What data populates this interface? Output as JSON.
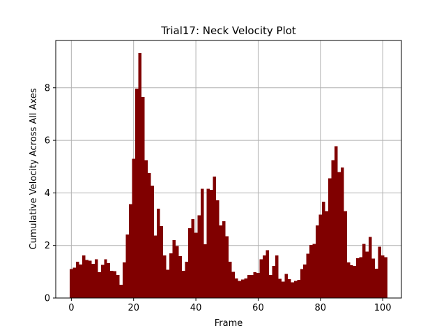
{
  "chart_data": {
    "type": "bar",
    "title": "Trial17: Neck Velocity Plot",
    "xlabel": "Frame",
    "ylabel": "Cumulative Velocity Across All Axes",
    "xlim": [
      -5,
      106
    ],
    "ylim": [
      0,
      9.8
    ],
    "xticks": [
      0,
      20,
      40,
      60,
      80,
      100
    ],
    "yticks": [
      0,
      2,
      4,
      6,
      8
    ],
    "grid": true,
    "bar_color": "#800000",
    "bar_width": 1,
    "x": [
      0,
      1,
      2,
      3,
      4,
      5,
      6,
      7,
      8,
      9,
      10,
      11,
      12,
      13,
      14,
      15,
      16,
      17,
      18,
      19,
      20,
      21,
      22,
      23,
      24,
      25,
      26,
      27,
      28,
      29,
      30,
      31,
      32,
      33,
      34,
      35,
      36,
      37,
      38,
      39,
      40,
      41,
      42,
      43,
      44,
      45,
      46,
      47,
      48,
      49,
      50,
      51,
      52,
      53,
      54,
      55,
      56,
      57,
      58,
      59,
      60,
      61,
      62,
      63,
      64,
      65,
      66,
      67,
      68,
      69,
      70,
      71,
      72,
      73,
      74,
      75,
      76,
      77,
      78,
      79,
      80,
      81,
      82,
      83,
      84,
      85,
      86,
      87,
      88,
      89,
      90,
      91,
      92,
      93,
      94,
      95,
      96,
      97,
      98,
      99,
      100,
      101
    ],
    "values": [
      1.1,
      1.15,
      1.38,
      1.28,
      1.62,
      1.45,
      1.42,
      1.3,
      1.47,
      0.98,
      1.26,
      1.47,
      1.33,
      1.04,
      1.02,
      0.88,
      0.5,
      1.35,
      2.42,
      3.57,
      5.3,
      7.97,
      9.32,
      7.65,
      5.25,
      4.75,
      4.28,
      2.38,
      3.4,
      2.74,
      1.62,
      1.07,
      1.7,
      2.2,
      1.98,
      1.6,
      1.03,
      1.38,
      2.65,
      3.0,
      2.48,
      3.15,
      4.15,
      2.05,
      4.15,
      4.12,
      4.62,
      3.72,
      2.76,
      2.92,
      2.35,
      1.38,
      1.0,
      0.75,
      0.65,
      0.7,
      0.75,
      0.87,
      0.87,
      0.98,
      0.95,
      1.47,
      1.62,
      1.82,
      0.88,
      1.22,
      1.62,
      0.73,
      0.62,
      0.92,
      0.72,
      0.6,
      0.65,
      0.69,
      1.1,
      1.28,
      1.68,
      2.02,
      2.06,
      2.76,
      3.17,
      3.67,
      3.3,
      4.55,
      5.25,
      5.77,
      4.8,
      4.97,
      3.3,
      1.35,
      1.25,
      1.22,
      1.52,
      1.55,
      2.06,
      1.77,
      2.33,
      1.5,
      1.12,
      1.95,
      1.62,
      1.55
    ]
  }
}
